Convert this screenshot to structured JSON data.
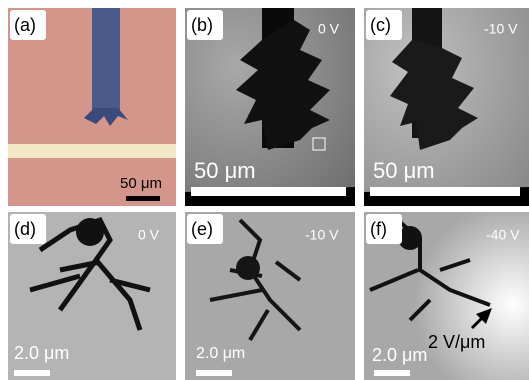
{
  "panels": [
    {
      "label": "(a)",
      "scale": "50 μm"
    },
    {
      "label": "(b)",
      "voltage": "0 V",
      "scale": "50 μm"
    },
    {
      "label": "(c)",
      "voltage": "-10 V",
      "scale": "50 μm"
    },
    {
      "label": "(d)",
      "voltage": "0 V",
      "scale": "2.0 μm"
    },
    {
      "label": "(e)",
      "voltage": "-10 V",
      "scale": "2.0 μm"
    },
    {
      "label": "(f)",
      "voltage": "-40 V",
      "scale": "2.0 μm",
      "annotation": "2 V/μm"
    }
  ]
}
